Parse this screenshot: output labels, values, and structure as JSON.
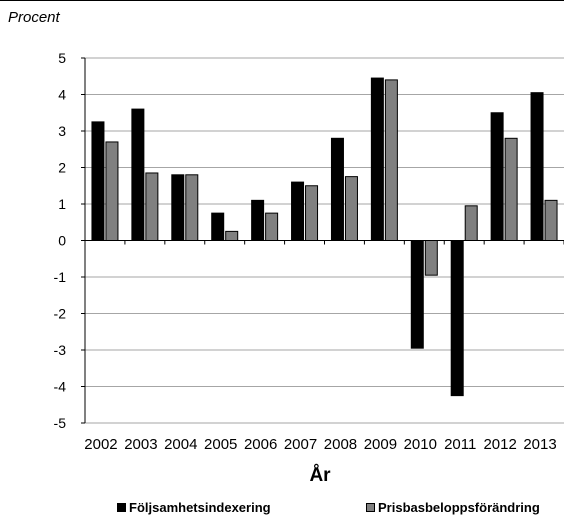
{
  "chart_data": {
    "type": "bar",
    "ylabel": "Procent",
    "xlabel": "År",
    "categories": [
      "2002",
      "2003",
      "2004",
      "2005",
      "2006",
      "2007",
      "2008",
      "2009",
      "2010",
      "2011",
      "2012",
      "2013"
    ],
    "series": [
      {
        "name": "Följsamhetsindexering",
        "color": "#000000",
        "values": [
          3.25,
          3.6,
          1.8,
          0.75,
          1.1,
          1.6,
          2.8,
          4.45,
          -2.95,
          -4.25,
          3.5,
          4.05
        ]
      },
      {
        "name": "Prisbasbeloppsförändring",
        "color": "#808080",
        "values": [
          2.7,
          1.85,
          1.8,
          0.25,
          0.75,
          1.5,
          1.75,
          4.4,
          -0.95,
          0.95,
          2.8,
          1.1
        ]
      }
    ],
    "ylim": [
      -5,
      5
    ],
    "yticks": [
      5,
      4,
      3,
      2,
      1,
      0,
      -1,
      -2,
      -3,
      -4,
      -5
    ],
    "grid": true,
    "legend": "bottom"
  }
}
